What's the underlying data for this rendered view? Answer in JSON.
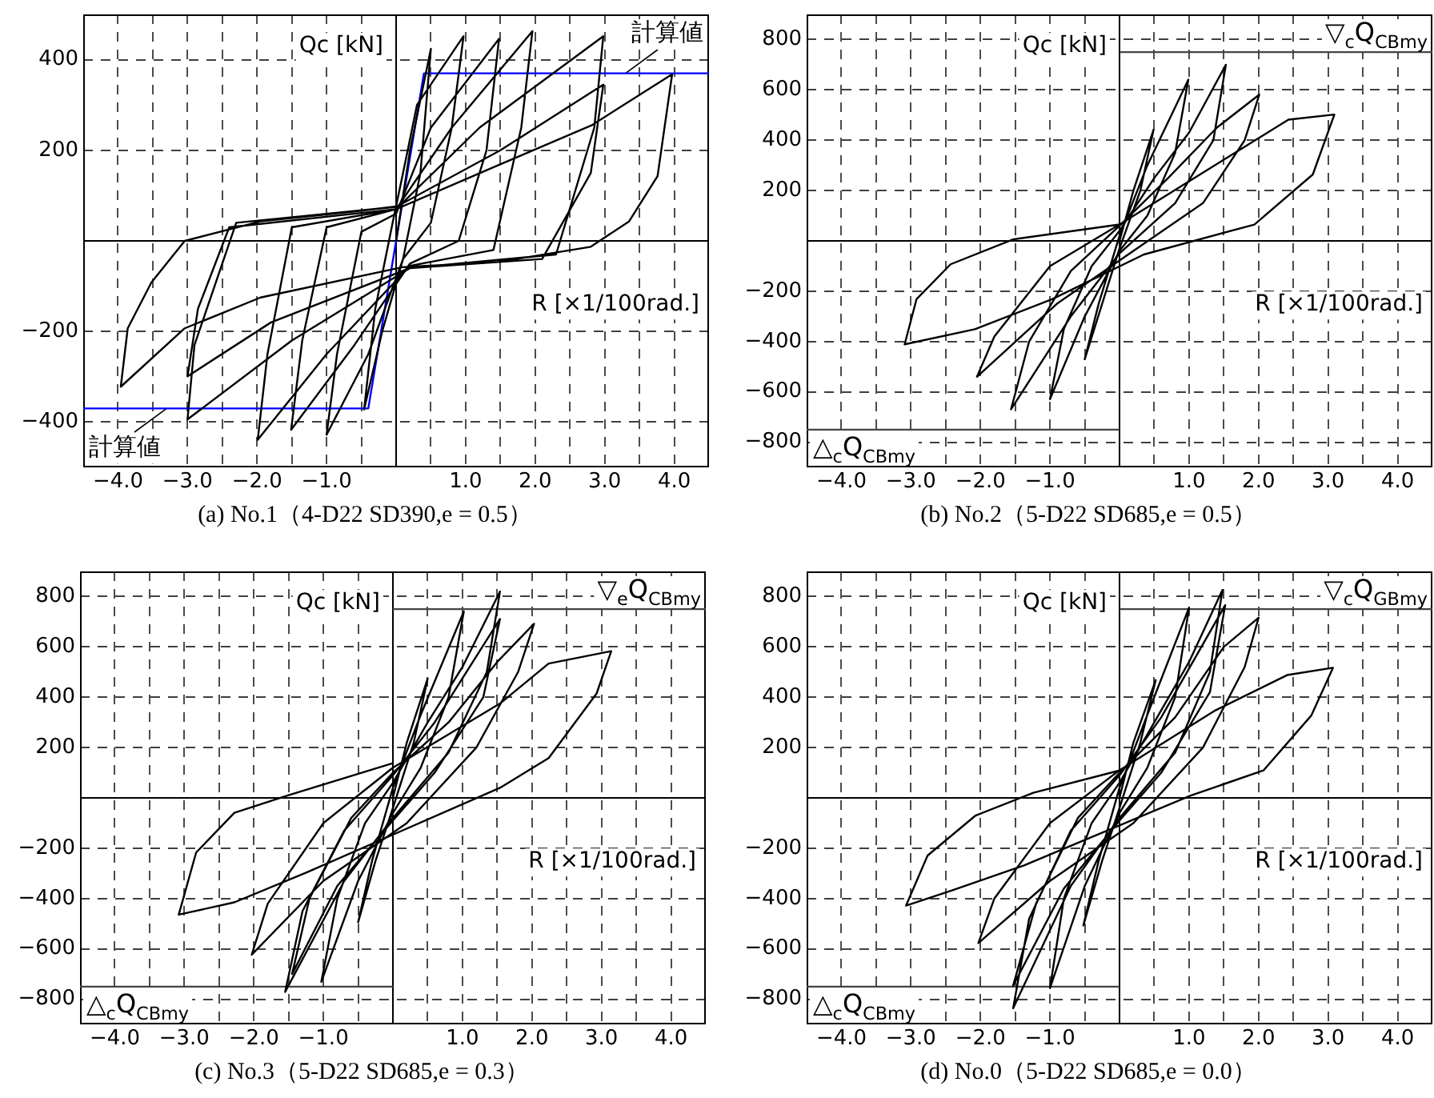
{
  "chart_data": [
    {
      "type": "line",
      "title": "(a) No.1（4-D22 SD390,e = 0.5）",
      "xlabel": "R [×1/100rad.]",
      "ylabel": "Qc [kN]",
      "xlim": [
        -4.5,
        4.5
      ],
      "ylim": [
        -500,
        500
      ],
      "grid": true,
      "xticks": [
        {
          "value": -4,
          "label": "−4.0"
        },
        {
          "value": -3.5,
          "label": null
        },
        {
          "value": -3,
          "label": "−3.0"
        },
        {
          "value": -2.5,
          "label": null
        },
        {
          "value": -2,
          "label": "−2.0"
        },
        {
          "value": -1.5,
          "label": null
        },
        {
          "value": -1,
          "label": "−1.0"
        },
        {
          "value": -0.5,
          "label": null
        },
        {
          "value": 0.5,
          "label": null
        },
        {
          "value": 1,
          "label": "1.0"
        },
        {
          "value": 1.5,
          "label": null
        },
        {
          "value": 2,
          "label": "2.0"
        },
        {
          "value": 2.5,
          "label": null
        },
        {
          "value": 3,
          "label": "3.0"
        },
        {
          "value": 3.5,
          "label": null
        },
        {
          "value": 4,
          "label": "4.0"
        }
      ],
      "yticks": [
        {
          "value": -400,
          "label": "−400"
        },
        {
          "value": -200,
          "label": "−200"
        },
        200,
        400
      ],
      "series": [
        {
          "color": "#000000",
          "x": [
            0,
            0.2,
            0.5,
            0.35,
            0.1,
            -0.2,
            -0.46,
            -0.3,
            -0.05,
            0.1,
            0.3,
            0.97,
            0.8,
            0.5,
            0.1,
            -0.4,
            -1.0,
            -0.85,
            -0.5,
            0,
            0.5,
            1.48,
            1.3,
            0.9,
            0.2,
            -0.6,
            -1.51,
            -1.35,
            -1.0,
            0,
            0.8,
            1.96,
            1.8,
            1.4,
            0.2,
            -1.0,
            -1.99,
            -1.85,
            -1.5,
            0,
            1.2,
            2.98,
            2.85,
            2.3,
            0.2,
            -1.5,
            -3.0,
            -2.9,
            -2.3,
            0,
            1.5,
            2.98,
            2.8,
            2.1,
            0.2,
            -1.8,
            -3.0,
            -2.85,
            -2.4,
            0,
            1.45,
            2.81,
            3.97,
            3.76,
            3.35,
            2.8,
            1.45,
            0.09,
            -1.95,
            -3.04,
            -3.96,
            -3.86,
            -3.52,
            -3.04,
            -1.95,
            -0.6,
            0
          ],
          "values": [
            0,
            200,
            424,
            150,
            -40,
            -200,
            -372,
            -150,
            40,
            150,
            300,
            452,
            250,
            40,
            -40,
            -250,
            -428,
            -250,
            20,
            60,
            250,
            446,
            200,
            0,
            -50,
            -230,
            -417,
            -220,
            30,
            70,
            250,
            463,
            250,
            -20,
            -55,
            -250,
            -439,
            -250,
            30,
            70,
            250,
            452,
            250,
            -30,
            -60,
            -220,
            -394,
            -230,
            40,
            75,
            200,
            345,
            150,
            -40,
            -60,
            -180,
            -299,
            -150,
            30,
            70,
            166,
            255,
            368,
            143,
            43,
            -13,
            -47,
            -58,
            -125,
            -193,
            -322,
            -193,
            -92,
            0,
            43,
            65,
            76
          ]
        },
        {
          "color": "#0000ff",
          "x": [
            -4.5,
            -0.4,
            0.4,
            4.5
          ],
          "values": [
            -370,
            -370,
            370,
            370
          ]
        }
      ],
      "annotations": [
        {
          "text": "計算値",
          "x": 3.3,
          "y": 370
        },
        {
          "text": "計算値",
          "x": -3.3,
          "y": -370
        }
      ]
    },
    {
      "type": "line",
      "title": "(b) No.2（5-D22 SD685,e = 0.5）",
      "xlabel": "R [×1/100rad.]",
      "ylabel": "Qc [kN]",
      "xlim": [
        -4.5,
        4.5
      ],
      "ylim": [
        -900,
        900
      ],
      "grid": true,
      "xticks": [
        {
          "value": -4,
          "label": "−4.0"
        },
        {
          "value": -3.5,
          "label": null
        },
        {
          "value": -3,
          "label": "−3.0"
        },
        {
          "value": -2.5,
          "label": null
        },
        {
          "value": -2,
          "label": "−2.0"
        },
        {
          "value": -1.5,
          "label": null
        },
        {
          "value": -1,
          "label": "−1.0"
        },
        {
          "value": -0.5,
          "label": null
        },
        {
          "value": 0.5,
          "label": null
        },
        {
          "value": 1,
          "label": "1.0"
        },
        {
          "value": 1.5,
          "label": null
        },
        {
          "value": 2,
          "label": "2.0"
        },
        {
          "value": 2.5,
          "label": null
        },
        {
          "value": 3,
          "label": "3.0"
        },
        {
          "value": 3.5,
          "label": null
        },
        {
          "value": 4,
          "label": "4.0"
        }
      ],
      "yticks": [
        {
          "value": -800,
          "label": "−800"
        },
        {
          "value": -600,
          "label": "−600"
        },
        {
          "value": -400,
          "label": "−400"
        },
        {
          "value": -200,
          "label": "−200"
        },
        200,
        400,
        600,
        800
      ],
      "series": [
        {
          "color": "#000000",
          "x": [
            0,
            0.2,
            0.49,
            0.3,
            0,
            -0.25,
            -0.5,
            -0.3,
            0,
            0.4,
            0.99,
            0.8,
            0.4,
            0,
            -0.5,
            -1.0,
            -0.8,
            -0.4,
            0,
            0.5,
            1.0,
            1.53,
            1.35,
            0.8,
            0,
            -0.7,
            -1.56,
            -1.3,
            -0.7,
            0,
            0.7,
            1.4,
            2.01,
            1.8,
            1.2,
            0.2,
            -0.9,
            -2.05,
            -1.8,
            -1.0,
            0,
            1.39,
            2.43,
            3.09,
            2.78,
            1.94,
            0.35,
            -0.97,
            -2.08,
            -3.09,
            -2.92,
            -2.43,
            -1.53,
            0
          ],
          "values": [
            0,
            200,
            442,
            200,
            -30,
            -250,
            -470,
            -250,
            20,
            300,
            641,
            350,
            100,
            -40,
            -300,
            -629,
            -350,
            -100,
            40,
            250,
            430,
            700,
            400,
            150,
            -50,
            -300,
            -669,
            -400,
            -120,
            60,
            250,
            450,
            581,
            400,
            150,
            -40,
            -250,
            -540,
            -380,
            -100,
            65,
            304,
            482,
            502,
            264,
            65,
            -54,
            -232,
            -351,
            -411,
            -232,
            -93,
            6,
            65
          ]
        }
      ],
      "ref_lines": [
        {
          "axis": "y",
          "value": 750,
          "label": "▽$_{c}$Q$_{CBmy}$"
        },
        {
          "axis": "y",
          "value": -750,
          "label": "△$_{c}$Q$_{CBmy}$"
        }
      ]
    },
    {
      "type": "line",
      "title": "(c) No.3（5-D22 SD685,e = 0.3）",
      "xlabel": "R [×1/100rad.]",
      "ylabel": "Qc [kN]",
      "xlim": [
        -4.5,
        4.5
      ],
      "ylim": [
        -900,
        900
      ],
      "grid": true,
      "xticks": [
        {
          "value": -4,
          "label": "−4.0"
        },
        {
          "value": -3.5,
          "label": null
        },
        {
          "value": -3,
          "label": "−3.0"
        },
        {
          "value": -2.5,
          "label": null
        },
        {
          "value": -2,
          "label": "−2.0"
        },
        {
          "value": -1.5,
          "label": null
        },
        {
          "value": -1,
          "label": "−1.0"
        },
        {
          "value": -0.5,
          "label": null
        },
        {
          "value": 0.5,
          "label": null
        },
        {
          "value": 1,
          "label": "1.0"
        },
        {
          "value": 1.5,
          "label": null
        },
        {
          "value": 2,
          "label": "2.0"
        },
        {
          "value": 2.5,
          "label": null
        },
        {
          "value": 3,
          "label": "3.0"
        },
        {
          "value": 3.5,
          "label": null
        },
        {
          "value": 4,
          "label": "4.0"
        }
      ],
      "yticks": [
        {
          "value": -800,
          "label": "−800"
        },
        {
          "value": -600,
          "label": "−600"
        },
        {
          "value": -400,
          "label": "−400"
        },
        {
          "value": -200,
          "label": "−200"
        },
        200,
        400,
        600,
        800
      ],
      "series": [
        {
          "color": "#000000",
          "x": [
            0,
            0.2,
            0.5,
            0.3,
            0,
            -0.25,
            -0.5,
            -0.3,
            0,
            0.4,
            1.02,
            0.8,
            0.4,
            0,
            -0.5,
            -1.03,
            -0.8,
            -0.4,
            0,
            0.5,
            1.0,
            1.54,
            1.35,
            0.8,
            0,
            -0.7,
            -1.55,
            -1.3,
            -0.7,
            0,
            0.6,
            1.54,
            1.3,
            0.6,
            0,
            -0.8,
            -1.45,
            -1.2,
            -0.6,
            0,
            0.8,
            1.5,
            2.03,
            1.8,
            1.2,
            0.2,
            -1.0,
            -2.03,
            -1.8,
            -1.0,
            0,
            1.54,
            2.24,
            3.14,
            2.93,
            2.24,
            1.54,
            0.15,
            -1.24,
            -2.28,
            -3.08,
            -2.83,
            -2.28,
            -1.51,
            0
          ],
          "values": [
            0,
            220,
            474,
            220,
            -40,
            -250,
            -494,
            -250,
            40,
            330,
            741,
            400,
            120,
            -60,
            -330,
            -731,
            -400,
            -100,
            60,
            300,
            520,
            820,
            500,
            180,
            -80,
            -330,
            -771,
            -450,
            -130,
            90,
            300,
            711,
            400,
            100,
            -90,
            -350,
            -700,
            -400,
            -80,
            100,
            300,
            540,
            692,
            500,
            200,
            -100,
            -330,
            -623,
            -420,
            -100,
            120,
            375,
            534,
            583,
            415,
            158,
            40,
            -128,
            -296,
            -415,
            -464,
            -217,
            -59,
            10,
            138
          ]
        }
      ],
      "ref_lines": [
        {
          "axis": "y",
          "value": 750,
          "label": "▽$_{e}$Q$_{CBmy}$"
        },
        {
          "axis": "y",
          "value": -750,
          "label": "△$_{c}$Q$_{CBmy}$"
        }
      ]
    },
    {
      "type": "line",
      "title": "(d) No.0（5-D22 SD685,e = 0.0）",
      "xlabel": "R [×1/100rad.]",
      "ylabel": "Qc [kN]",
      "xlim": [
        -4.5,
        4.5
      ],
      "ylim": [
        -900,
        900
      ],
      "grid": true,
      "xticks": [
        {
          "value": -4,
          "label": "−4.0"
        },
        {
          "value": -3.5,
          "label": null
        },
        {
          "value": -3,
          "label": "−3.0"
        },
        {
          "value": -2.5,
          "label": null
        },
        {
          "value": -2,
          "label": "−2.0"
        },
        {
          "value": -1.5,
          "label": null
        },
        {
          "value": -1,
          "label": "−1.0"
        },
        {
          "value": -0.5,
          "label": null
        },
        {
          "value": 0.5,
          "label": null
        },
        {
          "value": 1,
          "label": "1.0"
        },
        {
          "value": 1.5,
          "label": null
        },
        {
          "value": 2,
          "label": "2.0"
        },
        {
          "value": 2.5,
          "label": null
        },
        {
          "value": 3,
          "label": "3.0"
        },
        {
          "value": 3.5,
          "label": null
        },
        {
          "value": 4,
          "label": "4.0"
        }
      ],
      "yticks": [
        {
          "value": -800,
          "label": "−800"
        },
        {
          "value": -600,
          "label": "−600"
        },
        {
          "value": -400,
          "label": "−400"
        },
        {
          "value": -200,
          "label": "−200"
        },
        200,
        400,
        600,
        800
      ],
      "series": [
        {
          "color": "#000000",
          "x": [
            0,
            0.2,
            0.52,
            0.3,
            0,
            -0.25,
            -0.52,
            -0.3,
            0,
            0.4,
            1.0,
            0.8,
            0.4,
            0,
            -0.5,
            -1.0,
            -0.8,
            -0.4,
            0,
            0.5,
            1.0,
            1.48,
            1.3,
            0.8,
            0,
            -0.7,
            -1.53,
            -1.3,
            -0.7,
            0,
            0.6,
            1.52,
            1.3,
            0.6,
            0,
            -0.8,
            -1.53,
            -1.2,
            -0.6,
            0,
            0.8,
            1.5,
            2.0,
            1.8,
            1.2,
            0.2,
            -1.0,
            -2.03,
            -1.8,
            -1.0,
            0,
            1.38,
            2.41,
            3.07,
            2.76,
            2.07,
            1.03,
            0,
            -1.38,
            -2.41,
            -3.07,
            -2.76,
            -2.07,
            -1.24,
            0
          ],
          "values": [
            0,
            220,
            468,
            220,
            -40,
            -250,
            -507,
            -250,
            40,
            330,
            756,
            400,
            120,
            -60,
            -350,
            -756,
            -400,
            -100,
            60,
            300,
            540,
            826,
            500,
            180,
            -80,
            -350,
            -836,
            -480,
            -130,
            90,
            320,
            766,
            420,
            100,
            -90,
            -360,
            -746,
            -420,
            -80,
            100,
            320,
            600,
            716,
            520,
            200,
            -100,
            -330,
            -577,
            -400,
            -100,
            110,
            348,
            488,
            517,
            328,
            109,
            10,
            -109,
            -269,
            -368,
            -428,
            -229,
            -70,
            20,
            109
          ]
        }
      ],
      "ref_lines": [
        {
          "axis": "y",
          "value": 750,
          "label": "▽$_{c}$Q$_{GBmy}$"
        },
        {
          "axis": "y",
          "value": -750,
          "label": "△$_{c}$Q$_{CBmy}$"
        }
      ]
    }
  ]
}
